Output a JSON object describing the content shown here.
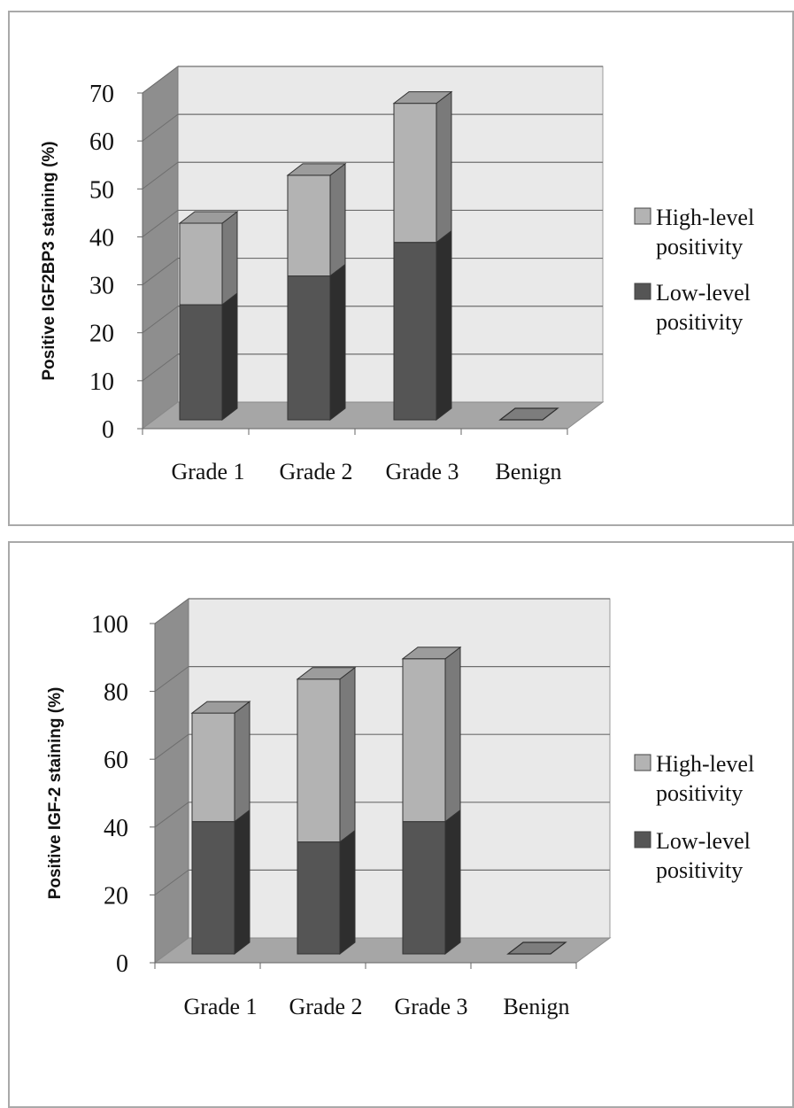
{
  "chart_data": [
    {
      "type": "bar",
      "stacked": true,
      "three_d": true,
      "categories": [
        "Grade 1",
        "Grade 2",
        "Grade 3",
        "Benign"
      ],
      "series": [
        {
          "name": "Low-level positivity",
          "values": [
            24,
            30,
            37,
            0
          ],
          "color": "#555555"
        },
        {
          "name": "High-level positivity",
          "values": [
            17,
            21,
            29,
            0
          ],
          "color": "#b3b3b3"
        }
      ],
      "ylabel": "Positive IGF2BP3 staining (%)",
      "ylim": [
        0,
        70
      ],
      "yticks": [
        "0",
        "10",
        "20",
        "30",
        "40",
        "50",
        "60",
        "70"
      ],
      "legend": [
        {
          "lines": [
            "High-level",
            "positivity"
          ],
          "color": "#b3b3b3"
        },
        {
          "lines": [
            "Low-level",
            "positivity"
          ],
          "color": "#555555"
        }
      ],
      "legend_position": "right",
      "grid": true
    },
    {
      "type": "bar",
      "stacked": true,
      "three_d": true,
      "categories": [
        "Grade 1",
        "Grade 2",
        "Grade 3",
        "Benign"
      ],
      "series": [
        {
          "name": "Low-level positivity",
          "values": [
            39,
            33,
            39,
            0
          ],
          "color": "#555555"
        },
        {
          "name": "High-level positivity",
          "values": [
            32,
            48,
            48,
            0
          ],
          "color": "#b3b3b3"
        }
      ],
      "ylabel": "Positive IGF-2 staining (%)",
      "ylim": [
        0,
        100
      ],
      "yticks": [
        "0",
        "20",
        "40",
        "60",
        "80",
        "100"
      ],
      "legend": [
        {
          "lines": [
            "High-level",
            "positivity"
          ],
          "color": "#b3b3b3"
        },
        {
          "lines": [
            "Low-level",
            "positivity"
          ],
          "color": "#555555"
        }
      ],
      "legend_position": "right",
      "grid": true
    }
  ]
}
